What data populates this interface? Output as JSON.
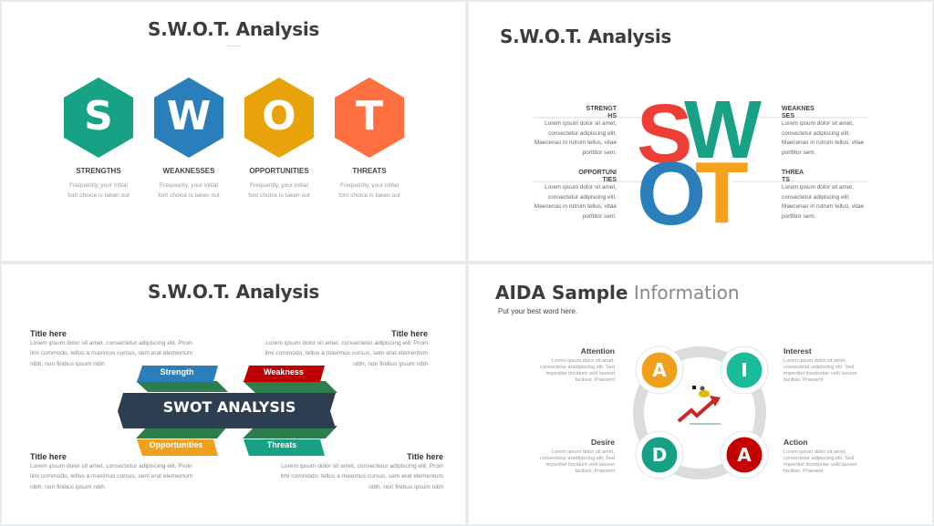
{
  "slide1": {
    "title": "S.W.O.T. Analysis",
    "items": [
      {
        "letter": "S",
        "label": "STRENGTHS",
        "desc1": "Frequently, your initial",
        "desc2": "font choice is taken out",
        "color": "#17a185"
      },
      {
        "letter": "W",
        "label": "WEAKNESSES",
        "desc1": "Frequently, your initial",
        "desc2": "font choice is taken out",
        "color": "#2a7fba"
      },
      {
        "letter": "O",
        "label": "OPPORTUNITIES",
        "desc1": "Frequently, your initial",
        "desc2": "font choice is taken out",
        "color": "#e8a20a"
      },
      {
        "letter": "T",
        "label": "THREATS",
        "desc1": "Frequently, your initial",
        "desc2": "font choice is taken out",
        "color": "#ff6f3f"
      }
    ]
  },
  "slide2": {
    "title": "S.W.O.T. Analysis",
    "letters": {
      "s": "S",
      "w": "W",
      "o": "O",
      "t": "T"
    },
    "colors": {
      "s": "#ef3e36",
      "w": "#17a185",
      "o": "#2a7fba",
      "t": "#f4a11b"
    },
    "items": [
      {
        "label1": "STRENGT",
        "label2": "HS",
        "lines": [
          "Lorem ipsum dolor sit amet,",
          "consectetur adipiscing elit.",
          "Maecenas in rutrum tellus, vitae",
          "porttitor sem."
        ]
      },
      {
        "label1": "WEAKNES",
        "label2": "SES",
        "lines": [
          "Lorem ipsum dolor sit amet,",
          "consectetur adipiscing elit.",
          "Maecenas in rutrum tellus, vitae",
          "porttitor sem."
        ]
      },
      {
        "label1": "OPPORTUNI",
        "label2": "TIES",
        "lines": [
          "Lorem ipsum dolor sit amet,",
          "consectetur adipiscing elit.",
          "Maecenas in rutrum tellus, vitae",
          "porttitor sem."
        ]
      },
      {
        "label1": "THREA",
        "label2": "TS",
        "lines": [
          "Lorem ipsum dolor sit amet,",
          "consectetur adipiscing elit.",
          "Maecenas in rutrum tellus, vitae",
          "porttitor sem."
        ]
      }
    ]
  },
  "slide3": {
    "title": "S.W.O.T. Analysis",
    "banner": "SWOT ANALYSIS",
    "tabs": {
      "strength": "Strength",
      "weakness": "Weakness",
      "opportunities": "Opportunities",
      "threats": "Threats"
    },
    "blocks": [
      {
        "title": "Title here",
        "lines": [
          "Lorem ipsum dolor sit amet, consectetur adipiscing elit. Proin",
          "limi commodo, tellus a maximus cursus, sem erat elementum",
          "nibh, non finibus ipsum nibh"
        ]
      },
      {
        "title": "Title here",
        "lines": [
          "Lorem ipsum dolor sit amet, consectetur adipiscing elit. Proin",
          "limi commodo, tellus a maximus cursus, sem erat elementum",
          "nibh, non finibus ipsum nibh"
        ]
      },
      {
        "title": "Title here",
        "lines": [
          "Lorem ipsum dolor sit amet, consectetur adipiscing elit. Proin",
          "limi commodo, tellus a maximus cursus, sem erat elementum",
          "nibh, non finibus ipsum nibh"
        ]
      },
      {
        "title": "Title here",
        "lines": [
          "Lorem ipsum dolor sit amet, consectetur adipiscing elit. Proin",
          "limi commodo, tellus a maximus cursus, sem erat elementum",
          "nibh, non finibus ipsum nibh"
        ]
      }
    ]
  },
  "slide4": {
    "title_bold": "AIDA Sample",
    "title_light": "Information",
    "subtitle": "Put your best word here.",
    "items": [
      {
        "letter": "A",
        "label": "Attention",
        "color": "#f0a01a",
        "lines": [
          "Lorem ipsum dolor sit amet,",
          "consectetur aradipiscing elit. Sed",
          "imperdiet tincidunt velit laoreet",
          "facilisis. Praesent"
        ]
      },
      {
        "letter": "I",
        "label": "Interest",
        "color": "#1abc9c",
        "lines": [
          "Lorem ipsum dolor sit amet,",
          "consectetur adipiscing elit. Sed",
          "imperdiet tinciduntar velit laoreet",
          "facilisis. Praesent"
        ]
      },
      {
        "letter": "D",
        "label": "Desire",
        "color": "#16a085",
        "lines": [
          "Lorem ipsum dolor sit amet,",
          "consectetur aradipiscing elit. Sed",
          "imperdiet tincidunt velit laoreet",
          "facilisis. Praesent"
        ]
      },
      {
        "letter": "A",
        "label": "Action",
        "color": "#c40000",
        "lines": [
          "Lorem ipsum dolor sit amet,",
          "consectetur adipiscing elit. Sed",
          "imperdiet tinciduntar velit laoreet",
          "facilisis. Praesent"
        ]
      }
    ]
  }
}
